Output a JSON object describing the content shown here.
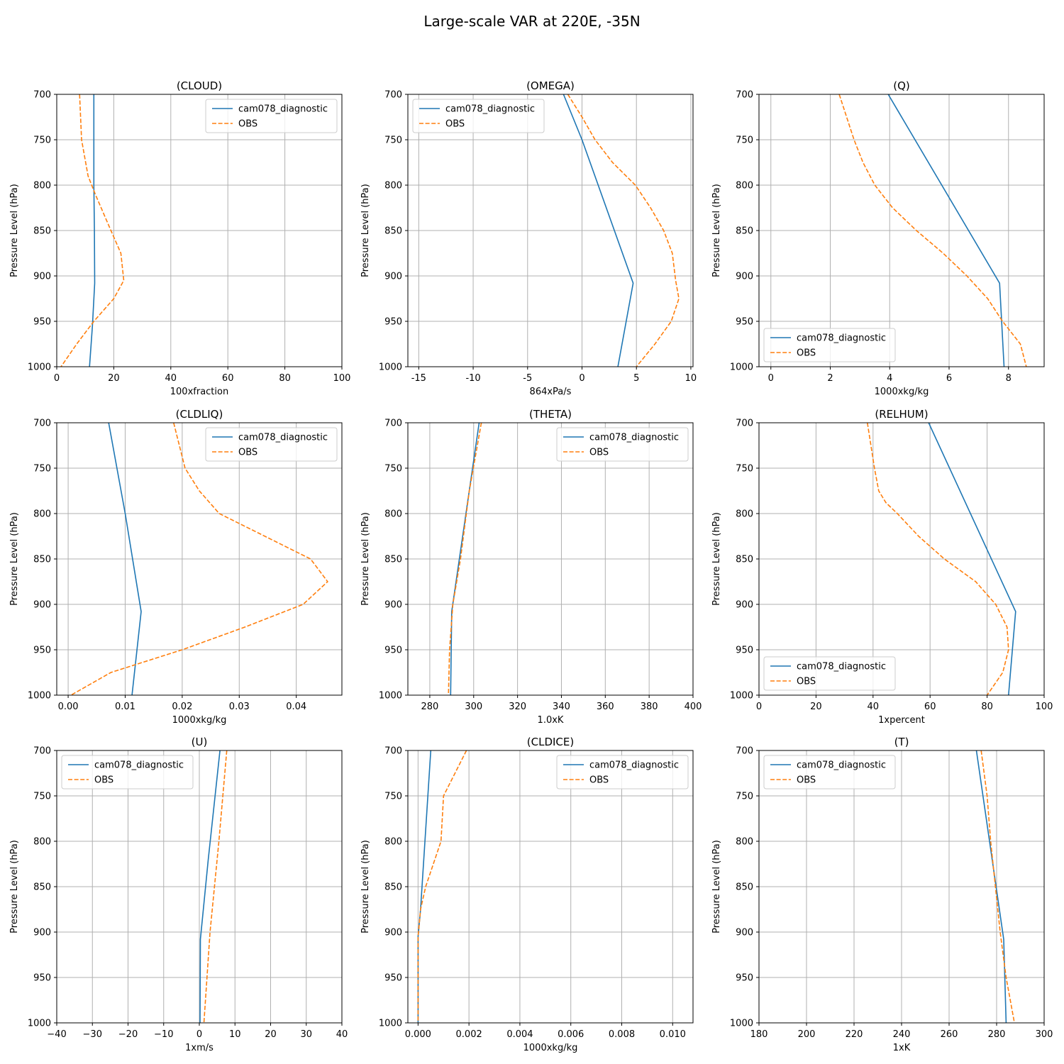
{
  "figure": {
    "title": "Large-scale VAR at 220E, -35N",
    "colors": {
      "model": "#1f77b4",
      "obs": "#ff7f0e",
      "grid": "#b0b0b0"
    }
  },
  "chart_data": [
    {
      "type": "line",
      "title": "(CLOUD)",
      "xlabel": "100xfraction",
      "ylabel": "Pressure Level (hPa)",
      "xlim": [
        0,
        100
      ],
      "xticks": [
        0,
        20,
        40,
        60,
        80,
        100
      ],
      "ylim": [
        1000,
        700
      ],
      "yticks": [
        700,
        750,
        800,
        850,
        900,
        950,
        1000
      ],
      "grid": true,
      "legend": "upper right",
      "series": [
        {
          "name": "cam078_diagnostic",
          "style": "solid",
          "color": "#1f77b4",
          "x": [
            13,
            13,
            13,
            13.2,
            13.3,
            12.5,
            11.5
          ],
          "y": [
            700,
            750,
            800,
            850,
            908,
            955,
            1000
          ]
        },
        {
          "name": "OBS",
          "style": "dashed",
          "color": "#ff7f0e",
          "x": [
            8,
            8.7,
            11,
            13.5,
            19,
            22.5,
            23.5,
            20,
            13,
            7,
            1.5
          ],
          "y": [
            700,
            750,
            790,
            810,
            850,
            875,
            905,
            925,
            950,
            975,
            1000
          ]
        }
      ]
    },
    {
      "type": "line",
      "title": "(OMEGA)",
      "xlabel": "864xPa/s",
      "ylabel": "Pressure Level (hPa)",
      "xlim": [
        -16,
        10.2
      ],
      "xticks": [
        -15,
        -10,
        -5,
        0,
        5,
        10
      ],
      "ylim": [
        1000,
        700
      ],
      "yticks": [
        700,
        750,
        800,
        850,
        900,
        950,
        1000
      ],
      "grid": true,
      "legend": "upper left",
      "series": [
        {
          "name": "cam078_diagnostic",
          "style": "solid",
          "color": "#1f77b4",
          "x": [
            -1.7,
            0,
            4.7,
            3.3
          ],
          "y": [
            700,
            750,
            908,
            1000
          ]
        },
        {
          "name": "OBS",
          "style": "dashed",
          "color": "#ff7f0e",
          "x": [
            -1.3,
            0,
            1.2,
            2.8,
            4.9,
            6.3,
            7.5,
            8.3,
            8.6,
            8.9,
            8.2,
            6.7,
            5
          ],
          "y": [
            700,
            725,
            750,
            775,
            800,
            825,
            850,
            875,
            905,
            925,
            950,
            975,
            1000
          ]
        }
      ]
    },
    {
      "type": "line",
      "title": "(Q)",
      "xlabel": "1000xkg/kg",
      "ylabel": "Pressure Level (hPa)",
      "xlim": [
        -0.4,
        9.2
      ],
      "xticks": [
        0,
        2,
        4,
        6,
        8
      ],
      "ylim": [
        1000,
        700
      ],
      "yticks": [
        700,
        750,
        800,
        850,
        900,
        950,
        1000
      ],
      "grid": true,
      "legend": "lower left",
      "series": [
        {
          "name": "cam078_diagnostic",
          "style": "solid",
          "color": "#1f77b4",
          "x": [
            3.95,
            7.7,
            7.85
          ],
          "y": [
            700,
            908,
            1000
          ]
        },
        {
          "name": "OBS",
          "style": "dashed",
          "color": "#ff7f0e",
          "x": [
            2.3,
            2.8,
            3.1,
            3.5,
            4.1,
            4.9,
            5.8,
            6.6,
            7.3,
            7.8,
            8.4,
            8.6
          ],
          "y": [
            700,
            750,
            775,
            800,
            825,
            850,
            875,
            900,
            925,
            950,
            975,
            1000
          ]
        }
      ]
    },
    {
      "type": "line",
      "title": "(CLDLIQ)",
      "xlabel": "1000xkg/kg",
      "ylabel": "Pressure Level (hPa)",
      "xlim": [
        -0.002,
        0.048
      ],
      "xticks": [
        0.0,
        0.01,
        0.02,
        0.03,
        0.04
      ],
      "xtick_labels": [
        "0.00",
        "0.01",
        "0.02",
        "0.03",
        "0.04"
      ],
      "ylim": [
        1000,
        700
      ],
      "yticks": [
        700,
        750,
        800,
        850,
        900,
        950,
        1000
      ],
      "grid": true,
      "legend": "upper right",
      "series": [
        {
          "name": "cam078_diagnostic",
          "style": "solid",
          "color": "#1f77b4",
          "x": [
            0.0071,
            0.01,
            0.0128,
            0.0112
          ],
          "y": [
            700,
            800,
            908,
            1000
          ]
        },
        {
          "name": "OBS",
          "style": "dashed",
          "color": "#ff7f0e",
          "x": [
            0.0185,
            0.0205,
            0.023,
            0.0265,
            0.0425,
            0.0455,
            0.0412,
            0.031,
            0.02,
            0.0075,
            0.0005
          ],
          "y": [
            700,
            750,
            775,
            800,
            850,
            875,
            900,
            925,
            950,
            975,
            1000
          ]
        }
      ]
    },
    {
      "type": "line",
      "title": "(THETA)",
      "xlabel": "1.0xK",
      "ylabel": "Pressure Level (hPa)",
      "xlim": [
        270,
        400
      ],
      "xticks": [
        280,
        300,
        320,
        340,
        360,
        380,
        400
      ],
      "ylim": [
        1000,
        700
      ],
      "yticks": [
        700,
        750,
        800,
        850,
        900,
        950,
        1000
      ],
      "grid": true,
      "legend": "upper right",
      "series": [
        {
          "name": "cam078_diagnostic",
          "style": "solid",
          "color": "#1f77b4",
          "x": [
            302.5,
            290,
            289.5
          ],
          "y": [
            700,
            908,
            1000
          ]
        },
        {
          "name": "OBS",
          "style": "dashed",
          "color": "#ff7f0e",
          "x": [
            303.5,
            298,
            294,
            290.5,
            289,
            288.5
          ],
          "y": [
            700,
            775,
            850,
            900,
            950,
            1000
          ]
        }
      ]
    },
    {
      "type": "line",
      "title": "(RELHUM)",
      "xlabel": "1xpercent",
      "ylabel": "Pressure Level (hPa)",
      "xlim": [
        0,
        100
      ],
      "xticks": [
        0,
        20,
        40,
        60,
        80,
        100
      ],
      "ylim": [
        1000,
        700
      ],
      "yticks": [
        700,
        750,
        800,
        850,
        900,
        950,
        1000
      ],
      "grid": true,
      "legend": "lower left",
      "series": [
        {
          "name": "cam078_diagnostic",
          "style": "solid",
          "color": "#1f77b4",
          "x": [
            59.5,
            90,
            87.5
          ],
          "y": [
            700,
            908,
            1000
          ]
        },
        {
          "name": "OBS",
          "style": "dashed",
          "color": "#ff7f0e",
          "x": [
            38,
            40.5,
            42,
            44.5,
            48.5,
            56,
            65,
            76,
            83,
            87,
            87.5,
            85.5,
            80
          ],
          "y": [
            700,
            750,
            775,
            788,
            800,
            825,
            850,
            875,
            900,
            925,
            950,
            975,
            1000
          ]
        }
      ]
    },
    {
      "type": "line",
      "title": "(U)",
      "xlabel": "1xm/s",
      "ylabel": "Pressure Level (hPa)",
      "xlim": [
        -40,
        40
      ],
      "xticks": [
        -40,
        -30,
        -20,
        -10,
        0,
        10,
        20,
        30,
        40
      ],
      "xtick_labels": [
        "−40",
        "−30",
        "−20",
        "−10",
        "0",
        "10",
        "20",
        "30",
        "40"
      ],
      "ylim": [
        1000,
        700
      ],
      "yticks": [
        700,
        750,
        800,
        850,
        900,
        950,
        1000
      ],
      "grid": true,
      "legend": "upper left",
      "series": [
        {
          "name": "cam078_diagnostic",
          "style": "solid",
          "color": "#1f77b4",
          "x": [
            5.8,
            2.5,
            0.3,
            0.2
          ],
          "y": [
            700,
            820,
            908,
            1000
          ]
        },
        {
          "name": "OBS",
          "style": "dashed",
          "color": "#ff7f0e",
          "x": [
            7.7,
            5.5,
            3,
            1.3
          ],
          "y": [
            700,
            800,
            900,
            1000
          ]
        }
      ]
    },
    {
      "type": "line",
      "title": "(CLDICE)",
      "xlabel": "1000xkg/kg",
      "ylabel": "Pressure Level (hPa)",
      "xlim": [
        -0.0004,
        0.0108
      ],
      "xticks": [
        0.0,
        0.002,
        0.004,
        0.006,
        0.008,
        0.01
      ],
      "xtick_labels": [
        "0.000",
        "0.002",
        "0.004",
        "0.006",
        "0.008",
        "0.010"
      ],
      "ylim": [
        1000,
        700
      ],
      "yticks": [
        700,
        750,
        800,
        850,
        900,
        950,
        1000
      ],
      "grid": true,
      "legend": "upper right",
      "series": [
        {
          "name": "cam078_diagnostic",
          "style": "solid",
          "color": "#1f77b4",
          "x": [
            0.0005,
            0.0001,
            0.0,
            0.0
          ],
          "y": [
            700,
            875,
            905,
            1000
          ]
        },
        {
          "name": "OBS",
          "style": "dashed",
          "color": "#ff7f0e",
          "x": [
            0.0019,
            0.001,
            0.0009,
            0.0003,
            0.0001,
            0.0,
            0.0
          ],
          "y": [
            700,
            750,
            800,
            850,
            875,
            905,
            1000
          ]
        }
      ]
    },
    {
      "type": "line",
      "title": "(T)",
      "xlabel": "1xK",
      "ylabel": "Pressure Level (hPa)",
      "xlim": [
        180,
        300
      ],
      "xticks": [
        180,
        200,
        220,
        240,
        260,
        280,
        300
      ],
      "ylim": [
        1000,
        700
      ],
      "yticks": [
        700,
        750,
        800,
        850,
        900,
        950,
        1000
      ],
      "grid": true,
      "legend": "upper left",
      "series": [
        {
          "name": "cam078_diagnostic",
          "style": "solid",
          "color": "#1f77b4",
          "x": [
            271.5,
            283,
            284
          ],
          "y": [
            700,
            908,
            1000
          ]
        },
        {
          "name": "OBS",
          "style": "dashed",
          "color": "#ff7f0e",
          "x": [
            273.5,
            276,
            277.5,
            279.5,
            281.5,
            284,
            287.5
          ],
          "y": [
            700,
            750,
            800,
            850,
            900,
            950,
            1000
          ]
        }
      ]
    }
  ]
}
